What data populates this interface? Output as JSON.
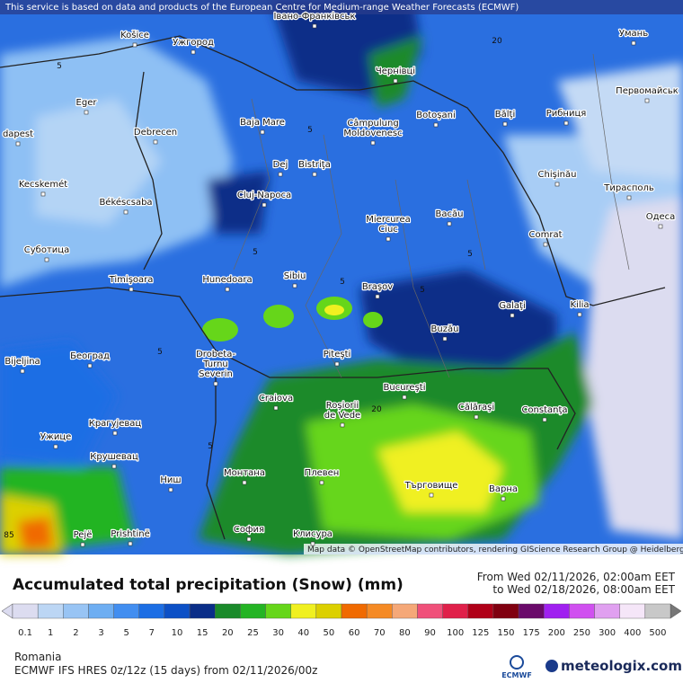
{
  "header": {
    "notice": "This service is based on data and products of the European Centre for Medium-range Weather Forecasts (ECMWF)"
  },
  "map": {
    "cities": [
      [
        "Košice"
      ],
      [
        "Ужгород"
      ],
      [
        "Івано-Франківськ"
      ],
      [
        "Чернівці"
      ],
      [
        "Умань"
      ],
      [
        "Eger"
      ],
      [
        "Baja Mare"
      ],
      [
        "Câmpulung",
        "Moldovenesc"
      ],
      [
        "Botoşani"
      ],
      [
        "Bălţi"
      ],
      [
        "Рибниця"
      ],
      [
        "Первомайськ"
      ],
      [
        "dapest"
      ],
      [
        "Debrecen"
      ],
      [
        "Dej"
      ],
      [
        "Bistriţa"
      ],
      [
        "Chişinău"
      ],
      [
        "Тирасполь"
      ],
      [
        "Kecskemét"
      ],
      [
        "Békéscsaba"
      ],
      [
        "Cluj-Napoca"
      ],
      [
        "Miercurea",
        "Ciuc"
      ],
      [
        "Bacău"
      ],
      [
        "Одеса"
      ],
      [
        "Суботица"
      ],
      [
        "Comrat"
      ],
      [
        "Timişoara"
      ],
      [
        "Hunedoara"
      ],
      [
        "Sibiu"
      ],
      [
        "Braşov"
      ],
      [
        "Galaţi"
      ],
      [
        "Kilia"
      ],
      [
        "Buzău"
      ],
      [
        "Bijeljina"
      ],
      [
        "Београд"
      ],
      [
        "Drobeta-",
        "Turnu",
        "Severin"
      ],
      [
        "Piteşti"
      ],
      [
        "Craiova"
      ],
      [
        "Bucureşti"
      ],
      [
        "Roşiorii",
        "de Vede"
      ],
      [
        "Călăraşi"
      ],
      [
        "Constanţa"
      ],
      [
        "Крагујевац"
      ],
      [
        "Ужице"
      ],
      [
        "Крушевац"
      ],
      [
        "Ниш"
      ],
      [
        "Монтана"
      ],
      [
        "Плевен"
      ],
      [
        "Търговище"
      ],
      [
        "Варна"
      ],
      [
        "Pejë"
      ],
      [
        "Prishtinë"
      ],
      [
        "София"
      ],
      [
        "Клисура"
      ]
    ],
    "contour_labels": [
      "5",
      "20",
      "5",
      "5",
      "5",
      "5",
      "5",
      "5",
      "20",
      "5",
      "85"
    ],
    "attribution": "Map data © OpenStreetMap contributors, rendering GIScience Research Group @ Heidelberg University"
  },
  "footer": {
    "title": "Accumulated total precipitation (Snow) (mm)",
    "from": "From Wed 02/11/2026, 02:00am EET",
    "to": "to Wed 02/18/2026, 08:00am EET",
    "region": "Romania",
    "model": "ECMWF IFS HRES 0z/12z (15 days) from 02/11/2026/00z",
    "logo_ecmwf": "ECMWF",
    "logo_site": "meteologix.com"
  },
  "legend": [
    {
      "value": 0.1,
      "color": "#dcdcf0"
    },
    {
      "value": 1,
      "color": "#bcd6f4"
    },
    {
      "value": 2,
      "color": "#98c4f4"
    },
    {
      "value": 3,
      "color": "#6eaef2"
    },
    {
      "value": 5,
      "color": "#428ef0"
    },
    {
      "value": 7,
      "color": "#1c6ee4"
    },
    {
      "value": 10,
      "color": "#0c50c6"
    },
    {
      "value": 15,
      "color": "#0a2e88"
    },
    {
      "value": 20,
      "color": "#1a8a2a"
    },
    {
      "value": 25,
      "color": "#24b424"
    },
    {
      "value": 30,
      "color": "#66d61a"
    },
    {
      "value": 40,
      "color": "#f0f020"
    },
    {
      "value": 50,
      "color": "#dcd000"
    },
    {
      "value": 60,
      "color": "#f06a00"
    },
    {
      "value": 70,
      "color": "#f58a24"
    },
    {
      "value": 80,
      "color": "#f5a878"
    },
    {
      "value": 90,
      "color": "#f0507a"
    },
    {
      "value": 100,
      "color": "#e0204a"
    },
    {
      "value": 125,
      "color": "#b00018"
    },
    {
      "value": 150,
      "color": "#800010"
    },
    {
      "value": 175,
      "color": "#6a0a6a"
    },
    {
      "value": 200,
      "color": "#a020f0"
    },
    {
      "value": 250,
      "color": "#d050f0"
    },
    {
      "value": 300,
      "color": "#e0a0f0"
    },
    {
      "value": 400,
      "color": "#f5e6f8"
    },
    {
      "value": 500,
      "color": "#c8c8c8"
    }
  ]
}
